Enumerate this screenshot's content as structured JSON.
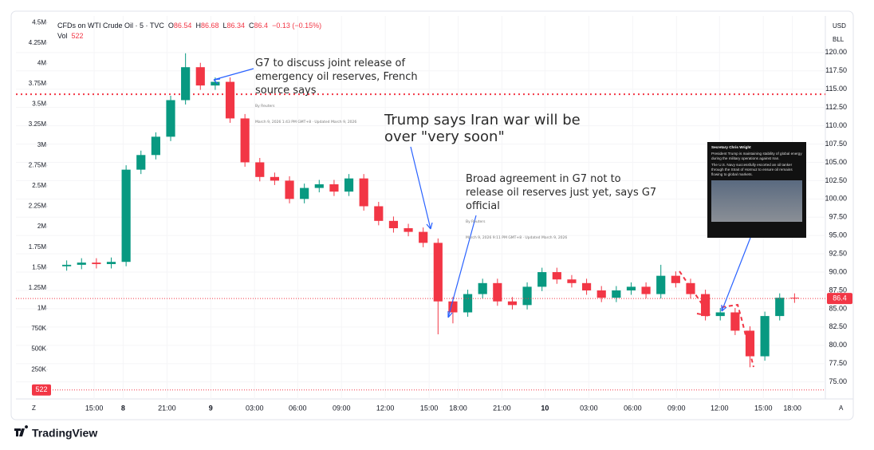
{
  "chart_data": {
    "type": "candlestick",
    "title": "CFDs on WTI Crude Oil · 5 · TVC",
    "ohlc": {
      "open": 86.54,
      "high": 86.68,
      "low": 86.34,
      "close": 86.4,
      "open_label": "O",
      "high_label": "H",
      "low_label": "L",
      "close_label": "C",
      "change": "−0.13 (−0.15%)"
    },
    "volume_label": "Vol",
    "volume": 522,
    "currency": "USD",
    "unit": "BLL",
    "x": [
      0,
      2,
      4,
      6,
      8,
      10,
      12,
      14,
      16,
      18,
      20,
      22,
      24,
      26,
      28,
      30,
      32,
      34,
      36,
      38,
      40,
      42,
      44,
      46,
      48,
      50,
      52,
      54,
      56,
      58,
      60,
      62,
      64,
      66,
      68,
      70,
      72,
      74,
      76,
      78,
      80,
      82,
      84,
      86,
      88,
      90,
      92,
      94,
      96,
      98
    ],
    "open": [
      90.8,
      91.0,
      91.3,
      91.1,
      91.4,
      104.0,
      106.0,
      108.5,
      113.5,
      118.0,
      115.5,
      116.0,
      111.0,
      105.0,
      103.0,
      102.5,
      100.0,
      101.5,
      102.0,
      101.0,
      102.8,
      99.0,
      97.0,
      96.0,
      95.5,
      94.0,
      86.0,
      84.5,
      87.0,
      88.5,
      86.0,
      85.5,
      88.0,
      90.0,
      89.0,
      88.5,
      87.5,
      86.5,
      87.5,
      88.0,
      87.0,
      89.5,
      88.5,
      87.0,
      84.0,
      84.5,
      82.0,
      78.5,
      84.0,
      86.5
    ],
    "close": [
      91.0,
      91.3,
      91.1,
      91.4,
      104.0,
      106.0,
      108.5,
      113.5,
      118.0,
      115.5,
      116.0,
      111.0,
      105.0,
      103.0,
      102.5,
      100.0,
      101.5,
      102.0,
      101.0,
      102.8,
      99.0,
      97.0,
      96.0,
      95.5,
      94.0,
      86.0,
      84.5,
      87.0,
      88.5,
      86.0,
      85.5,
      88.0,
      90.0,
      89.0,
      88.5,
      87.5,
      86.5,
      87.5,
      88.0,
      87.0,
      89.5,
      88.5,
      87.0,
      84.0,
      84.5,
      82.0,
      78.5,
      84.0,
      86.5,
      86.4
    ],
    "high": [
      91.6,
      91.9,
      91.9,
      92.0,
      104.6,
      106.6,
      109.1,
      114.1,
      119.9,
      118.6,
      116.6,
      116.6,
      111.6,
      105.6,
      103.6,
      103.1,
      102.1,
      102.6,
      102.6,
      103.4,
      103.4,
      99.6,
      97.6,
      96.6,
      96.1,
      94.6,
      86.6,
      87.6,
      89.1,
      89.1,
      86.6,
      88.6,
      90.6,
      90.6,
      89.6,
      89.1,
      88.1,
      88.1,
      88.6,
      88.6,
      91.0,
      90.1,
      89.1,
      87.6,
      85.1,
      85.1,
      82.6,
      84.6,
      87.1,
      87.1
    ],
    "low": [
      90.2,
      90.4,
      90.5,
      90.5,
      90.8,
      103.4,
      105.4,
      107.9,
      112.9,
      114.9,
      114.9,
      110.4,
      104.4,
      102.4,
      101.9,
      99.4,
      99.4,
      100.9,
      100.4,
      100.4,
      98.4,
      96.4,
      95.4,
      94.9,
      93.4,
      81.5,
      83.0,
      83.9,
      86.4,
      85.4,
      84.9,
      84.9,
      87.4,
      88.4,
      87.9,
      86.9,
      85.9,
      85.9,
      86.9,
      86.4,
      86.4,
      87.9,
      86.4,
      83.4,
      83.4,
      81.4,
      77.0,
      77.9,
      83.4,
      85.8
    ],
    "xlim": [
      -2,
      100
    ],
    "xticks": [
      {
        "value": 3.7,
        "label": "15:00"
      },
      {
        "value": 7.6,
        "label": "8"
      },
      {
        "value": 13.5,
        "label": "21:00"
      },
      {
        "value": 19.4,
        "label": "9"
      },
      {
        "value": 25.3,
        "label": "03:00"
      },
      {
        "value": 31.1,
        "label": "06:00"
      },
      {
        "value": 37.0,
        "label": "09:00"
      },
      {
        "value": 42.9,
        "label": "12:00"
      },
      {
        "value": 48.8,
        "label": "15:00"
      },
      {
        "value": 52.7,
        "label": "18:00"
      },
      {
        "value": 58.6,
        "label": "21:00"
      },
      {
        "value": 64.4,
        "label": "10"
      },
      {
        "value": 70.3,
        "label": "03:00"
      },
      {
        "value": 76.2,
        "label": "06:00"
      },
      {
        "value": 82.1,
        "label": "09:00"
      },
      {
        "value": 87.9,
        "label": "12:00"
      },
      {
        "value": 93.8,
        "label": "15:00"
      },
      {
        "value": 97.7,
        "label": "18:00"
      }
    ],
    "ylim": [
      73,
      125
    ],
    "yticks": [
      {
        "value": 75,
        "label": "75.00"
      },
      {
        "value": 77.5,
        "label": "77.50"
      },
      {
        "value": 80,
        "label": "80.00"
      },
      {
        "value": 82.5,
        "label": "82.50"
      },
      {
        "value": 85,
        "label": "85.00"
      },
      {
        "value": 87.5,
        "label": "87.50"
      },
      {
        "value": 90,
        "label": "90.00"
      },
      {
        "value": 92.5,
        "label": "92.50"
      },
      {
        "value": 95,
        "label": "95.00"
      },
      {
        "value": 97.5,
        "label": "97.50"
      },
      {
        "value": 100,
        "label": "100.00"
      },
      {
        "value": 102.5,
        "label": "102.50"
      },
      {
        "value": 105,
        "label": "105.00"
      },
      {
        "value": 107.5,
        "label": "107.50"
      },
      {
        "value": 110,
        "label": "110.00"
      },
      {
        "value": 112.5,
        "label": "112.50"
      },
      {
        "value": 115,
        "label": "115.00"
      },
      {
        "value": 117.5,
        "label": "117.50"
      },
      {
        "value": 120,
        "label": "120.00"
      }
    ],
    "y2lim": [
      -80000,
      4580000
    ],
    "y2ticks": [
      {
        "value": 250000,
        "label": "250K"
      },
      {
        "value": 500000,
        "label": "500K"
      },
      {
        "value": 750000,
        "label": "750K"
      },
      {
        "value": 1000000,
        "label": "1M"
      },
      {
        "value": 1250000,
        "label": "1.25M"
      },
      {
        "value": 1500000,
        "label": "1.5M"
      },
      {
        "value": 1750000,
        "label": "1.75M"
      },
      {
        "value": 2000000,
        "label": "2M"
      },
      {
        "value": 2250000,
        "label": "2.25M"
      },
      {
        "value": 2500000,
        "label": "2.5M"
      },
      {
        "value": 2750000,
        "label": "2.75M"
      },
      {
        "value": 3000000,
        "label": "3M"
      },
      {
        "value": 3250000,
        "label": "3.25M"
      },
      {
        "value": 3500000,
        "label": "3.5M"
      },
      {
        "value": 3750000,
        "label": "3.75M"
      },
      {
        "value": 4000000,
        "label": "4M"
      },
      {
        "value": 4250000,
        "label": "4.25M"
      },
      {
        "value": 4500000,
        "label": "4.5M"
      }
    ],
    "hline": 114.3,
    "up_color": "#089981",
    "down_color": "#f23645",
    "annotations": [
      {
        "title": "G7 to discuss joint release of emergency oil reserves, French source says",
        "byline": "By Reuters",
        "date": "March 9, 2026 1:43 PM GMT+8 · Updated March 9, 2026"
      },
      {
        "title": "Trump says Iran war will be over \"very soon\""
      },
      {
        "title": "Broad agreement in G7 not to release oil reserves just yet, says G7 official",
        "byline": "By Reuters",
        "date": "March 9, 2026 9:11 PM GMT+8 · Updated March 9, 2026"
      }
    ],
    "tweet": {
      "author": "Secretary Chris Wright",
      "text1": "President Trump is maintaining stability of global energy during the military operations against Iran.",
      "text2": "The U.S. Navy successfully escorted an oil tanker through the Strait of Hormuz to ensure oil remains flowing to global markets."
    },
    "brand": "TradingView"
  }
}
